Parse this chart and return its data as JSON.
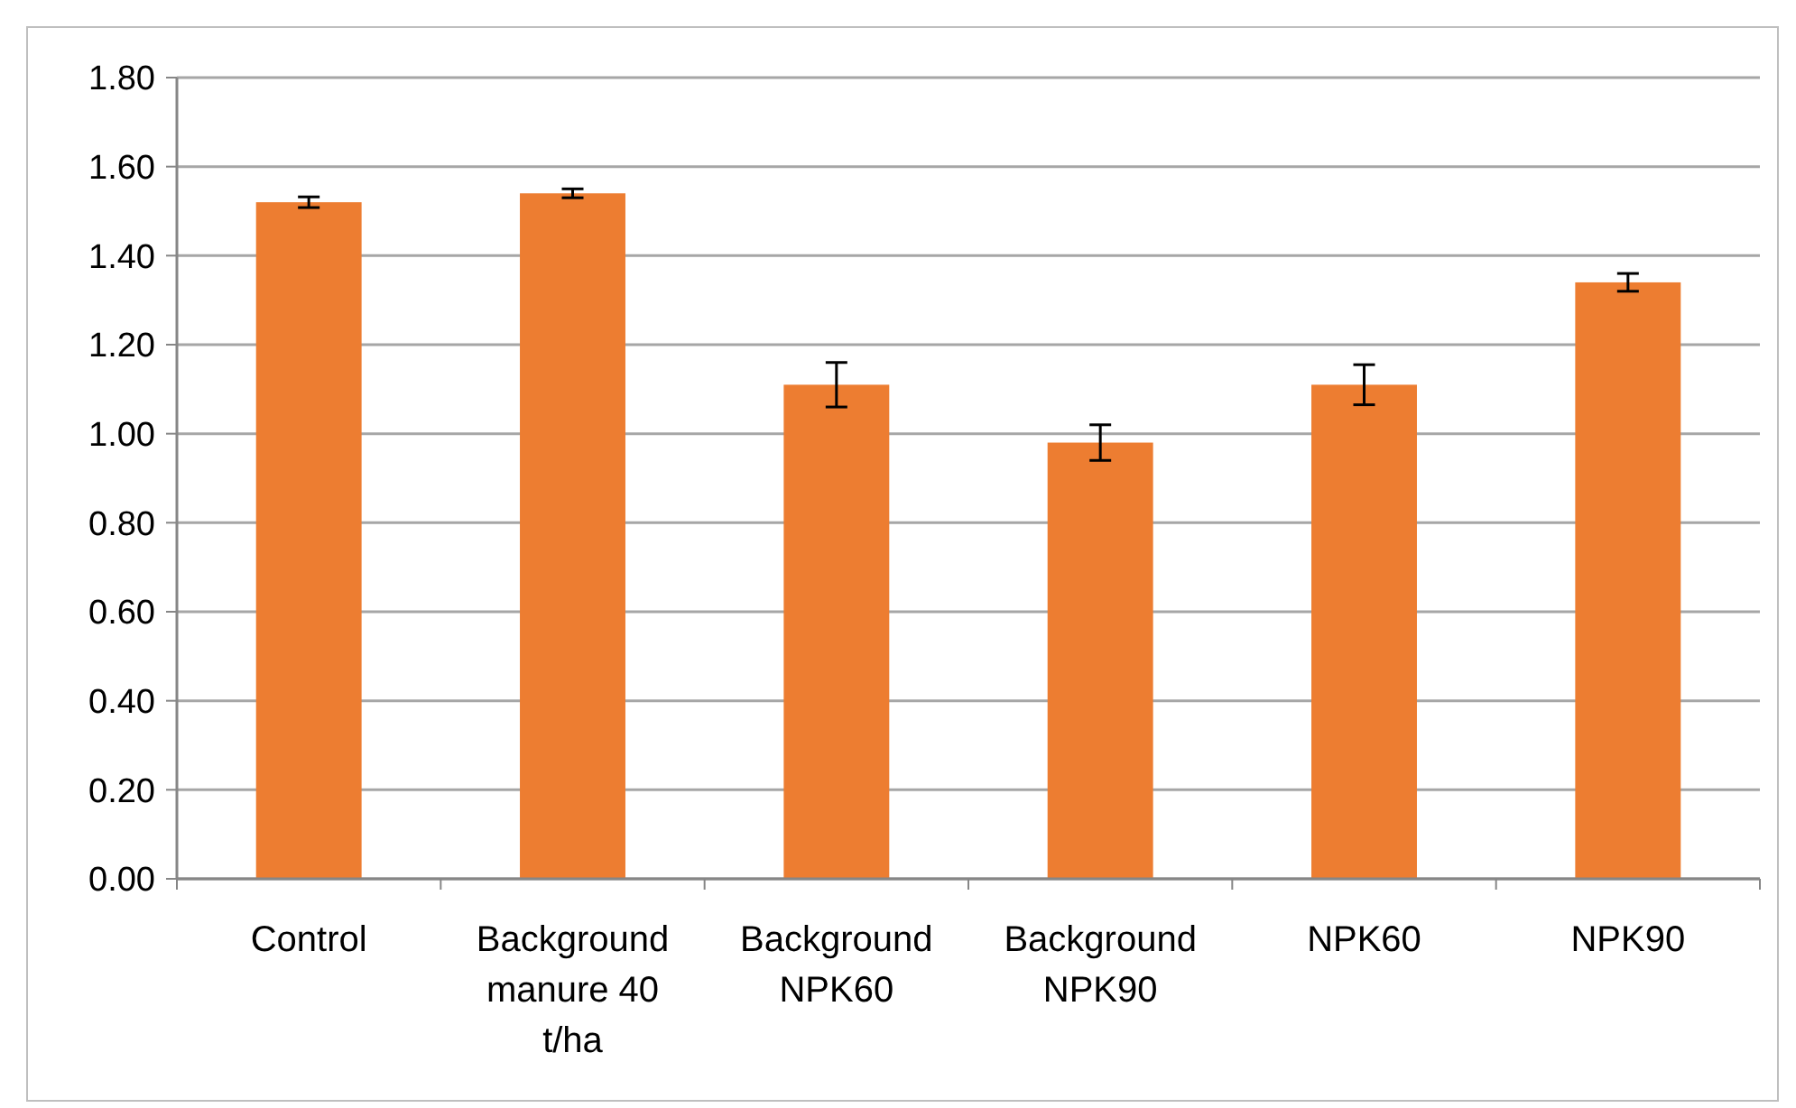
{
  "chart_data": {
    "type": "bar",
    "categories": [
      "Control",
      "Background manure 40 t/ha",
      "Background NPK60",
      "Background NPK90",
      "NPK60",
      "NPK90"
    ],
    "values": [
      1.52,
      1.54,
      1.11,
      0.98,
      1.11,
      1.34
    ],
    "errors": [
      0.012,
      0.01,
      0.05,
      0.04,
      0.045,
      0.02
    ],
    "color": "#ed7d31",
    "ylim": [
      0,
      1.8
    ],
    "yticks": [
      {
        "value": 0,
        "label": "0.00"
      },
      {
        "value": 0.2,
        "label": "0.20"
      },
      {
        "value": 0.4,
        "label": "0.40"
      },
      {
        "value": 0.6,
        "label": "0.60"
      },
      {
        "value": 0.8,
        "label": "0.80"
      },
      {
        "value": 1,
        "label": "1.00"
      },
      {
        "value": 1.2,
        "label": "1.20"
      },
      {
        "value": 1.4,
        "label": "1.40"
      },
      {
        "value": 1.6,
        "label": "1.60"
      },
      {
        "value": 1.8,
        "label": "1.80"
      }
    ],
    "grid": "y"
  }
}
